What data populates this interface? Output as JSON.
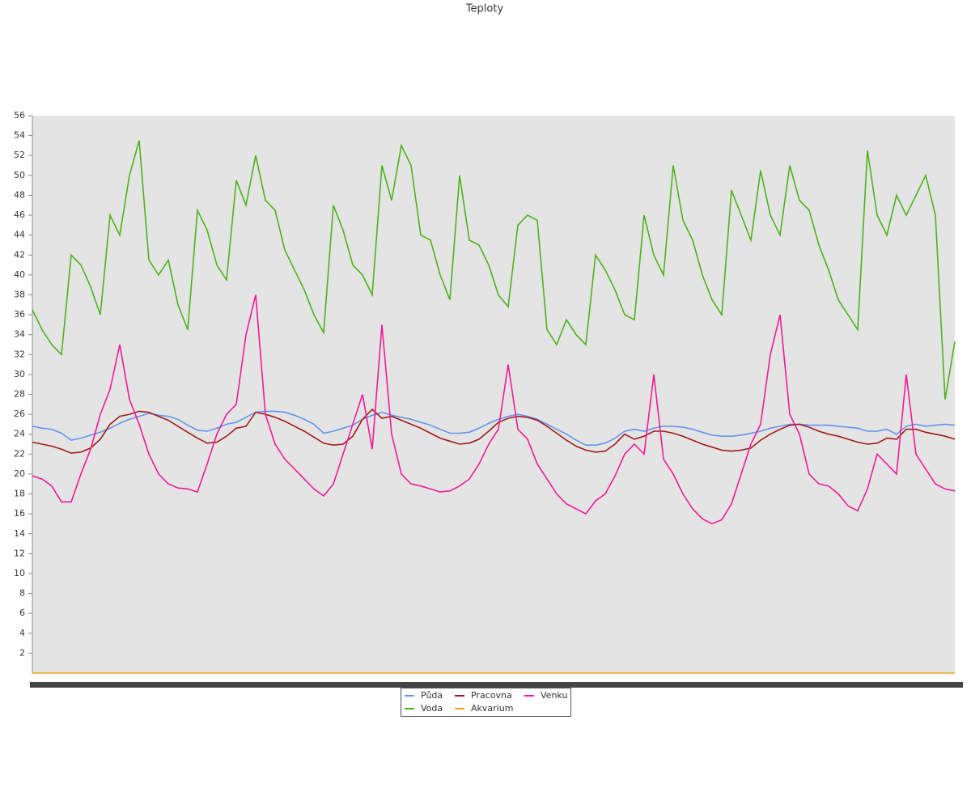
{
  "chart_data": {
    "type": "line",
    "title": "Teploty",
    "categories": [
      null,
      null,
      null,
      null,
      null,
      null,
      null,
      null,
      null,
      null,
      null,
      null,
      null,
      null,
      null,
      null,
      null,
      null,
      null,
      null,
      null,
      null,
      null,
      null,
      null,
      null,
      null,
      null,
      null,
      null,
      null,
      null,
      null,
      null,
      null,
      null,
      null,
      null,
      null,
      null,
      null,
      null,
      null,
      null,
      null,
      null,
      null,
      null,
      null,
      null,
      null,
      null,
      null,
      null,
      null,
      null,
      null,
      null,
      null,
      null,
      null,
      null,
      null,
      null,
      null,
      null,
      null,
      null,
      null,
      null,
      null,
      null,
      null,
      null,
      null,
      null,
      null,
      null,
      null,
      null,
      null,
      null,
      null,
      null,
      null,
      null,
      null,
      null,
      null,
      null,
      null,
      null,
      null,
      null,
      null,
      null
    ],
    "ylim": [
      0,
      56
    ],
    "yticks": [
      2,
      4,
      6,
      8,
      10,
      12,
      14,
      16,
      18,
      20,
      22,
      24,
      26,
      28,
      30,
      32,
      34,
      36,
      38,
      40,
      42,
      44,
      46,
      48,
      50,
      52,
      54,
      56
    ],
    "series": [
      {
        "name": "Půda",
        "color": "#6495ed",
        "values": [
          24.8,
          24.6,
          24.5,
          24.1,
          23.4,
          23.6,
          23.9,
          24.2,
          24.6,
          25.1,
          25.5,
          25.8,
          26.1,
          25.9,
          25.8,
          25.5,
          24.9,
          24.4,
          24.3,
          24.6,
          25,
          25.2,
          25.7,
          26.2,
          26.3,
          26.3,
          26.2,
          25.9,
          25.5,
          25,
          24.1,
          24.3,
          24.6,
          24.9,
          25.5,
          25.9,
          26.2,
          25.9,
          25.7,
          25.5,
          25.2,
          24.9,
          24.5,
          24.1,
          24.1,
          24.2,
          24.6,
          25.1,
          25.5,
          25.8,
          26,
          25.8,
          25.5,
          25,
          24.5,
          24,
          23.4,
          22.9,
          22.9,
          23.1,
          23.6,
          24.3,
          24.5,
          24.3,
          24.6,
          24.8,
          24.8,
          24.7,
          24.5,
          24.2,
          23.9,
          23.8,
          23.8,
          23.9,
          24.1,
          24.3,
          24.6,
          24.8,
          25,
          25,
          24.9,
          24.9,
          24.9,
          24.8,
          24.7,
          24.6,
          24.3,
          24.3,
          24.5,
          24,
          24.8,
          25,
          24.8,
          24.9,
          25,
          24.9
        ]
      },
      {
        "name": "Pracovna",
        "color": "#a31a1a",
        "values": [
          23.2,
          23,
          22.8,
          22.5,
          22.1,
          22.2,
          22.6,
          23.5,
          25,
          25.8,
          26,
          26.3,
          26.2,
          25.8,
          25.4,
          24.8,
          24.2,
          23.6,
          23.1,
          23.2,
          23.8,
          24.6,
          24.8,
          26.2,
          26,
          25.7,
          25.3,
          24.8,
          24.3,
          23.7,
          23.1,
          22.9,
          23,
          23.8,
          25.5,
          26.5,
          25.6,
          25.8,
          25.4,
          25,
          24.6,
          24.1,
          23.6,
          23.3,
          23,
          23.1,
          23.5,
          24.3,
          25.2,
          25.6,
          25.8,
          25.7,
          25.4,
          24.8,
          24.1,
          23.4,
          22.8,
          22.4,
          22.2,
          22.3,
          23,
          24,
          23.5,
          23.8,
          24.3,
          24.3,
          24.1,
          23.8,
          23.4,
          23,
          22.7,
          22.4,
          22.3,
          22.4,
          22.6,
          23.4,
          24,
          24.5,
          24.9,
          25,
          24.7,
          24.3,
          24,
          23.8,
          23.5,
          23.2,
          23,
          23.1,
          23.6,
          23.5,
          24.5,
          24.5,
          24.2,
          24,
          23.8,
          23.5
        ]
      },
      {
        "name": "Venku",
        "color": "#f01a9a",
        "values": [
          19.8,
          19.5,
          18.8,
          17.2,
          17.2,
          20,
          22.5,
          26,
          28.5,
          33,
          27.5,
          25,
          22,
          20,
          19,
          18.6,
          18.5,
          18.2,
          21,
          24,
          26,
          27,
          34,
          38,
          26,
          23,
          21.5,
          20.5,
          19.5,
          18.5,
          17.8,
          19,
          22,
          25,
          28,
          22.5,
          35,
          24,
          20,
          19,
          18.8,
          18.5,
          18.2,
          18.3,
          18.8,
          19.5,
          21,
          23,
          24.5,
          31,
          24.5,
          23.5,
          21,
          19.5,
          18,
          17,
          16.5,
          16,
          17.3,
          18,
          19.8,
          22,
          23,
          22,
          30,
          21.5,
          20,
          18,
          16.5,
          15.5,
          15,
          15.4,
          17,
          20,
          23,
          25,
          32,
          36,
          26,
          24,
          20,
          19,
          18.8,
          18,
          16.8,
          16.3,
          18.5,
          22,
          21,
          20,
          30,
          22,
          20.5,
          19,
          18.5,
          18.3
        ]
      },
      {
        "name": "Voda",
        "color": "#4cb31a",
        "values": [
          36.5,
          34.5,
          33,
          32,
          42,
          41,
          38.8,
          36,
          46,
          44,
          50,
          53.5,
          41.5,
          40,
          41.5,
          37,
          34.5,
          46.5,
          44.5,
          41,
          39.5,
          49.5,
          47,
          52,
          47.5,
          46.5,
          42.5,
          40.5,
          38.5,
          36,
          34.2,
          47,
          44.5,
          41,
          40,
          38,
          51,
          47.5,
          53,
          51,
          44,
          43.5,
          40,
          37.5,
          50,
          43.5,
          43,
          41,
          38,
          36.8,
          45,
          46,
          45.5,
          34.5,
          33,
          35.5,
          34,
          33,
          42,
          40.5,
          38.5,
          36,
          35.5,
          46,
          42,
          40,
          51,
          45.5,
          43.5,
          40,
          37.5,
          36,
          48.5,
          46,
          43.5,
          50.5,
          46,
          44,
          51,
          47.5,
          46.5,
          43,
          40.5,
          37.5,
          36,
          34.5,
          52.5,
          46,
          44,
          48,
          46,
          48,
          50,
          46,
          27.5,
          33.3
        ]
      },
      {
        "name": "Akvarium",
        "color": "#f0a020",
        "values": [
          0,
          0,
          0,
          0,
          0,
          0,
          0,
          0,
          0,
          0,
          0,
          0,
          0,
          0,
          0,
          0,
          0,
          0,
          0,
          0,
          0,
          0,
          0,
          0,
          0,
          0,
          0,
          0,
          0,
          0,
          0,
          0,
          0,
          0,
          0,
          0,
          0,
          0,
          0,
          0,
          0,
          0,
          0,
          0,
          0,
          0,
          0,
          0,
          0,
          0,
          0,
          0,
          0,
          0,
          0,
          0,
          0,
          0,
          0,
          0,
          0,
          0,
          0,
          0,
          0,
          0,
          0,
          0,
          0,
          0,
          0,
          0,
          0,
          0,
          0,
          0,
          0,
          0,
          0,
          0,
          0,
          0,
          0,
          0,
          0,
          0,
          0,
          0,
          0,
          0,
          0,
          0,
          0,
          0,
          0,
          0
        ]
      }
    ]
  }
}
